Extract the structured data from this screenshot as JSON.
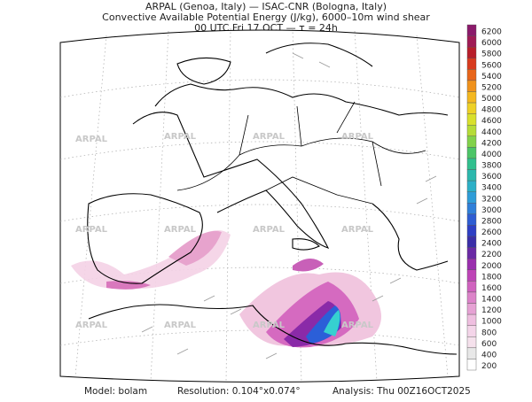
{
  "header": {
    "lines": [
      "ARPAL (Genoa, Italy)  —  ISAC-CNR (Bologna, Italy)",
      "Convective Available Potential Energy (J/kg), 6000–10m wind shear",
      "00 UTC Fri 17 OCT  —  τ = 24h"
    ]
  },
  "colorbar": {
    "labels": [
      6200,
      6000,
      5800,
      5600,
      5400,
      5200,
      5000,
      4800,
      4600,
      4400,
      4200,
      4000,
      3800,
      3600,
      3400,
      3200,
      3000,
      2800,
      2600,
      2400,
      2200,
      2000,
      1800,
      1600,
      1400,
      1200,
      1000,
      800,
      600,
      400,
      200
    ]
  },
  "watermark": "ARPAL",
  "footer": {
    "model": "Model: bolam",
    "resolution": "Resolution: 0.104°x0.074°",
    "analysis": "Analysis: Thu 00Z16OCT2025"
  }
}
